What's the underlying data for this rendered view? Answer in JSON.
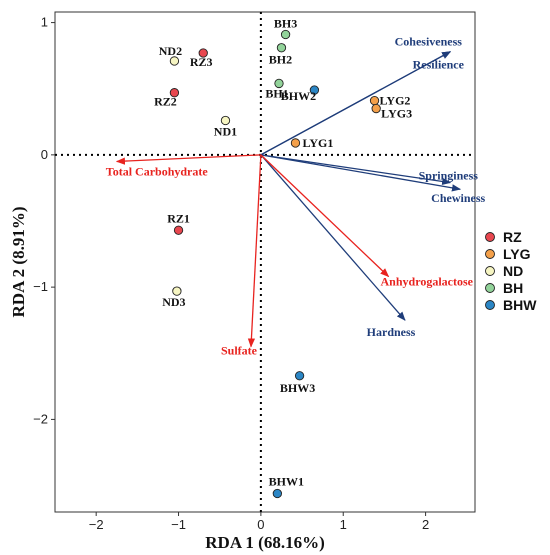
{
  "chart_data": {
    "type": "scatter",
    "subtype": "rda-biplot",
    "xlabel": "RDA 1 (68.16%)",
    "ylabel": "RDA 2 (8.91%)",
    "xlim": [
      -2.5,
      2.6
    ],
    "ylim": [
      -2.7,
      1.08
    ],
    "xticks": [
      -2,
      -1,
      0,
      1,
      2
    ],
    "yticks": [
      -2,
      -1,
      0,
      1
    ],
    "grid": false,
    "legend_position": "right",
    "groups": [
      {
        "name": "RZ",
        "color": "#e8474f"
      },
      {
        "name": "LYG",
        "color": "#f4a04a"
      },
      {
        "name": "ND",
        "color": "#f6f5c2"
      },
      {
        "name": "BH",
        "color": "#92d39a"
      },
      {
        "name": "BHW",
        "color": "#2b86c5"
      }
    ],
    "points": [
      {
        "label": "RZ3",
        "group": "RZ",
        "x": -0.7,
        "y": 0.77
      },
      {
        "label": "RZ2",
        "group": "RZ",
        "x": -1.05,
        "y": 0.47
      },
      {
        "label": "RZ1",
        "group": "RZ",
        "x": -1.0,
        "y": -0.57
      },
      {
        "label": "ND2",
        "group": "ND",
        "x": -1.05,
        "y": 0.71
      },
      {
        "label": "ND1",
        "group": "ND",
        "x": -0.43,
        "y": 0.26
      },
      {
        "label": "ND3",
        "group": "ND",
        "x": -1.02,
        "y": -1.03
      },
      {
        "label": "BH3",
        "group": "BH",
        "x": 0.3,
        "y": 0.91
      },
      {
        "label": "BH2",
        "group": "BH",
        "x": 0.25,
        "y": 0.81
      },
      {
        "label": "BH1",
        "group": "BH",
        "x": 0.22,
        "y": 0.54
      },
      {
        "label": "LYG2",
        "group": "LYG",
        "x": 1.38,
        "y": 0.41
      },
      {
        "label": "LYG3",
        "group": "LYG",
        "x": 1.4,
        "y": 0.35
      },
      {
        "label": "LYG1",
        "group": "LYG",
        "x": 0.42,
        "y": 0.09
      },
      {
        "label": "BHW2",
        "group": "BHW",
        "x": 0.65,
        "y": 0.49
      },
      {
        "label": "BHW3",
        "group": "BHW",
        "x": 0.47,
        "y": -1.67
      },
      {
        "label": "BHW1",
        "group": "BHW",
        "x": 0.2,
        "y": -2.56
      }
    ],
    "response_arrows": [
      {
        "label": "Cohesiveness",
        "x": 2.3,
        "y": 0.78
      },
      {
        "label": "Resilience",
        "x": 2.3,
        "y": 0.78
      },
      {
        "label": "Springiness",
        "x": 2.3,
        "y": -0.21
      },
      {
        "label": "Chewiness",
        "x": 2.42,
        "y": -0.26
      },
      {
        "label": "Hardness",
        "x": 1.75,
        "y": -1.25
      }
    ],
    "explanatory_arrows": [
      {
        "label": "Total Carbohydrate",
        "x": -1.75,
        "y": -0.05
      },
      {
        "label": "Anhydrogalactose",
        "x": 1.55,
        "y": -0.92
      },
      {
        "label": "Sulfate",
        "x": -0.12,
        "y": -1.45
      }
    ],
    "colors": {
      "response_arrow": "#1f3d7a",
      "explanatory_arrow": "#e8231f",
      "reference_line": "#000000"
    }
  }
}
